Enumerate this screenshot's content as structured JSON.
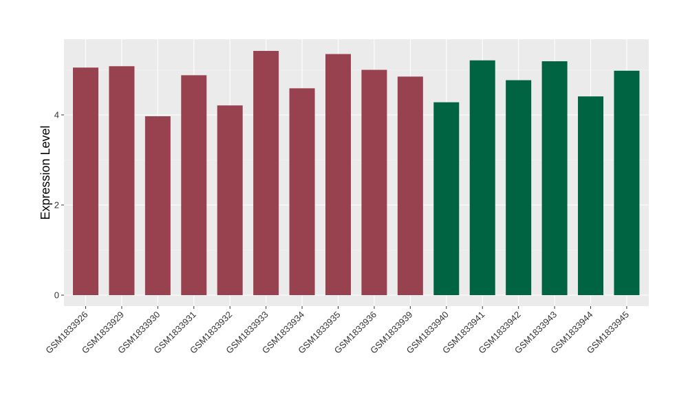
{
  "chart_data": {
    "type": "bar",
    "title": "",
    "xlabel": "",
    "ylabel": "Expression Level",
    "ylim": [
      0,
      5.7
    ],
    "y_ticks": [
      0,
      2,
      4
    ],
    "grid": true,
    "legend": "none",
    "background": "#EBEBEB",
    "categories": [
      "GSM1833926",
      "GSM1833929",
      "GSM1833930",
      "GSM1833931",
      "GSM1833932",
      "GSM1833933",
      "GSM1833934",
      "GSM1833935",
      "GSM1833936",
      "GSM1833939",
      "GSM1833940",
      "GSM1833941",
      "GSM1833942",
      "GSM1833943",
      "GSM1833944",
      "GSM1833945"
    ],
    "values": [
      5.05,
      5.08,
      3.97,
      4.88,
      4.21,
      5.42,
      4.59,
      5.35,
      5.0,
      4.85,
      4.28,
      5.21,
      4.77,
      5.19,
      4.41,
      4.98
    ],
    "bar_colors": [
      "#99424F",
      "#99424F",
      "#99424F",
      "#99424F",
      "#99424F",
      "#99424F",
      "#99424F",
      "#99424F",
      "#99424F",
      "#99424F",
      "#006342",
      "#006342",
      "#006342",
      "#006342",
      "#006342",
      "#006342"
    ]
  }
}
